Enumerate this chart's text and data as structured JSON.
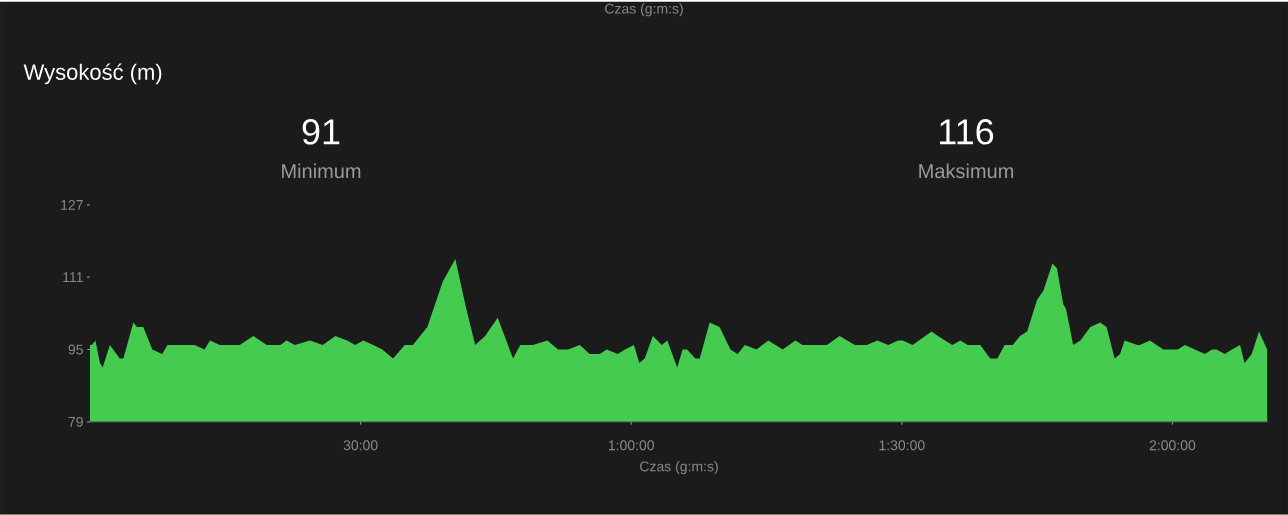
{
  "chart_data": {
    "type": "area",
    "title": "Wysokość (m)",
    "xlabel": "Czas (g:m:s)",
    "annotations": [
      "Czas (g:m:s)",
      "91",
      "Minimum",
      "116",
      "Maksimum"
    ],
    "x": [
      0,
      0.2,
      0.6,
      1.1,
      1.4,
      2.2,
      3.3,
      3.7,
      4.8,
      5.2,
      5.9,
      6.9,
      8.0,
      8.6,
      10.0,
      10.8,
      11.6,
      12.7,
      13.3,
      14.4,
      15.9,
      16.6,
      18.1,
      19.6,
      21.1,
      21.8,
      22.7,
      24.4,
      25.8,
      27.2,
      28.5,
      29.4,
      30.3,
      31.4,
      32.4,
      33.6,
      34.9,
      35.8,
      36.6,
      37.4,
      39.1,
      40.5,
      41.6,
      42.7,
      43.8,
      45.2,
      46.9,
      47.7,
      49.1,
      50.7,
      51.9,
      53.0,
      54.3,
      55.4,
      56.5,
      57.3,
      58.5,
      59.3,
      60.3,
      60.9,
      61.5,
      62.4,
      63.4,
      64.0,
      65.1,
      65.7,
      66.2,
      67.1,
      67.6,
      68.7,
      69.8,
      71.0,
      71.8,
      72.6,
      73.9,
      75.2,
      76.8,
      78.2,
      79.0,
      80.0,
      81.7,
      83.1,
      84.8,
      86.1,
      87.3,
      88.5,
      89.6,
      90.1,
      91.2,
      93.3,
      94.0,
      94.8,
      95.6,
      96.5,
      97.3,
      98.7,
      99.8,
      100.6,
      101.4,
      102.3,
      103.1,
      103.9,
      105.0,
      105.7,
      106.7,
      107.2,
      107.9,
      108.2,
      109.0,
      109.8,
      110.9,
      112.0,
      112.7,
      113.6,
      114.2,
      114.7,
      116.1,
      116.4,
      117.5,
      119.0,
      120.1,
      120.6,
      121.4,
      122.5,
      123.6,
      124.4,
      124.9,
      125.8,
      126.6,
      127.5,
      128.0,
      128.8,
      129.6,
      130.5
    ],
    "series": [
      {
        "color": "#45cc50",
        "values": [
          96,
          96,
          97,
          92,
          91,
          96,
          93,
          93,
          101,
          100,
          100,
          95,
          94,
          96,
          96,
          96,
          96,
          95,
          97,
          96,
          96,
          96,
          98,
          96,
          96,
          97,
          96,
          97,
          96,
          98,
          97,
          96,
          97,
          96,
          95,
          93,
          96,
          96,
          98,
          100,
          110,
          115,
          105,
          96,
          98,
          102,
          93,
          96,
          96,
          97,
          95,
          95,
          96,
          94,
          94,
          95,
          94,
          95,
          96,
          92,
          93,
          98,
          96,
          97,
          91,
          95,
          95,
          93,
          93,
          101,
          100,
          95,
          94,
          96,
          95,
          97,
          95,
          97,
          96,
          96,
          96,
          98,
          96,
          96,
          97,
          96,
          97,
          97,
          96,
          99,
          98,
          97,
          96,
          97,
          96,
          96,
          93,
          93,
          96,
          96,
          98,
          99,
          106,
          108,
          114,
          113,
          105,
          104,
          96,
          97,
          100,
          101,
          100,
          93,
          94,
          97,
          96,
          96,
          97,
          95,
          95,
          95,
          96,
          95,
          94,
          95,
          95,
          94,
          95,
          96,
          92,
          94,
          99,
          95
        ]
      }
    ],
    "xlim": [
      0,
      130.6
    ],
    "ylim": [
      79,
      127
    ],
    "yticks": [
      79,
      95,
      111,
      127
    ],
    "xticks": [
      {
        "value": 30,
        "label": "30:00"
      },
      {
        "value": 60,
        "label": "1:00:00"
      },
      {
        "value": 90,
        "label": "1:30:00"
      },
      {
        "value": 120,
        "label": "2:00:00"
      }
    ],
    "grid": false
  }
}
